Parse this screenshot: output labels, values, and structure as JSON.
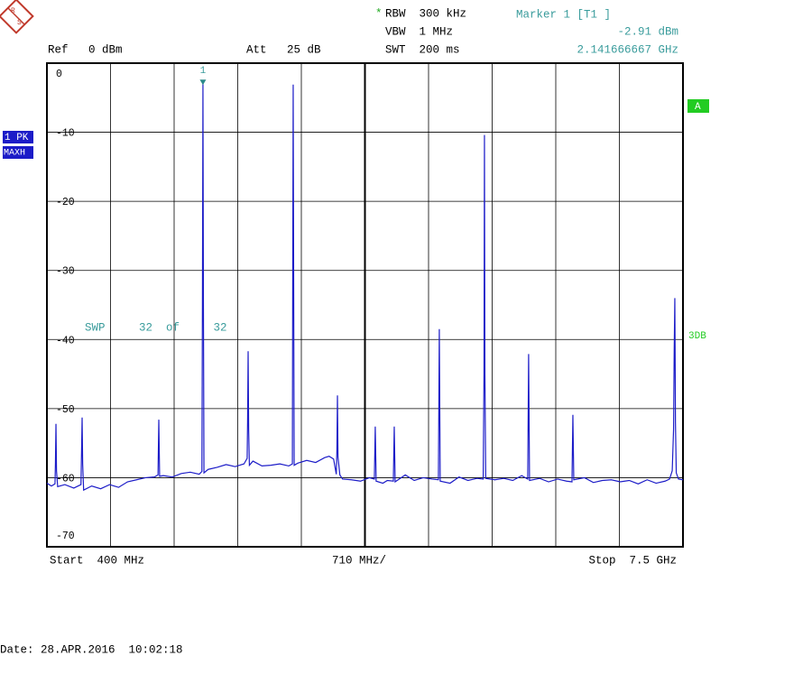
{
  "chart_data": {
    "type": "line",
    "logo": [
      "R",
      "S"
    ],
    "annotations": {
      "rbw_flag": "*",
      "rbw": "RBW  300 kHz",
      "vbw": "VBW  1 MHz",
      "swt": "SWT  200 ms",
      "ref": "Ref   0 dBm",
      "att": "Att   25 dB",
      "trace_mode": "1 PK",
      "trace_detector": "MAXH",
      "screen": "A",
      "limit": "3DB",
      "sweep": "SWP     32  of     32",
      "start": "Start  400 MHz",
      "span_div": "710 MHz/",
      "stop": "Stop  7.5 GHz",
      "date": "Date: 28.APR.2016  10:02:18"
    },
    "marker": {
      "name": "Marker 1 [T1 ]",
      "label": "1",
      "x": 2141.666667,
      "y": -2.91,
      "x_label": "2.141666667 GHz",
      "y_label": "-2.91 dBm"
    },
    "xlim": [
      400,
      7500
    ],
    "ylim": [
      -70,
      0
    ],
    "yticks": [
      0,
      -10,
      -20,
      -30,
      -40,
      -50,
      -60,
      -70
    ],
    "grid": true,
    "series": [
      {
        "name": "1 PK MAXH",
        "color": "#1c1cc8",
        "x": [
          400,
          450,
          490,
          495,
          501,
          507,
          520,
          600,
          700,
          780,
          787,
          793,
          799,
          810,
          900,
          1000,
          1100,
          1200,
          1300,
          1400,
          1500,
          1600,
          1640,
          1649,
          1658,
          1700,
          1800,
          1900,
          2000,
          2100,
          2130,
          2136,
          2141.666667,
          2147,
          2153,
          2200,
          2300,
          2400,
          2500,
          2600,
          2635,
          2640,
          2646,
          2652,
          2660,
          2700,
          2800,
          2900,
          3000,
          3100,
          3140,
          3144,
          3149,
          3154,
          3160,
          3200,
          3300,
          3400,
          3500,
          3550,
          3600,
          3630,
          3637,
          3643,
          3649,
          3670,
          3700,
          3800,
          3900,
          4000,
          4055,
          4065,
          4075,
          4150,
          4200,
          4267,
          4277,
          4287,
          4400,
          4500,
          4600,
          4700,
          4770,
          4780,
          4790,
          4900,
          5000,
          5100,
          5200,
          5270,
          5279,
          5284,
          5289,
          5298,
          5400,
          5500,
          5600,
          5700,
          5767,
          5777,
          5787,
          5900,
          6000,
          6100,
          6200,
          6261,
          6271,
          6281,
          6400,
          6500,
          6600,
          6700,
          6800,
          6900,
          7000,
          7100,
          7200,
          7300,
          7350,
          7380,
          7395,
          7402,
          7409,
          7416,
          7425,
          7450,
          7500
        ],
        "values": [
          -60.8,
          -61.2,
          -60.9,
          -58,
          -52.2,
          -59,
          -61.3,
          -61,
          -61.5,
          -61,
          -56,
          -51.3,
          -58,
          -61.8,
          -61.2,
          -61.6,
          -61,
          -61.4,
          -60.6,
          -60.3,
          -60,
          -59.9,
          -59.6,
          -51.6,
          -59.8,
          -59.7,
          -59.9,
          -59.4,
          -59.2,
          -59.5,
          -59.1,
          -35,
          -2.91,
          -35,
          -59.3,
          -58.8,
          -58.5,
          -58.1,
          -58.4,
          -58,
          -57.2,
          -52,
          -41.7,
          -53,
          -58.2,
          -57.6,
          -58.3,
          -58.2,
          -58,
          -58.3,
          -58,
          -30,
          -3.1,
          -30,
          -58.2,
          -57.9,
          -57.5,
          -57.8,
          -57.1,
          -56.9,
          -57.3,
          -59.5,
          -56,
          -48.1,
          -57,
          -59.6,
          -60.2,
          -60.3,
          -60.5,
          -60,
          -60.2,
          -52.6,
          -60.5,
          -60.8,
          -60.4,
          -60.5,
          -52.6,
          -60.6,
          -59.6,
          -60.4,
          -60,
          -60.2,
          -60.3,
          -38.5,
          -60.5,
          -60.8,
          -59.9,
          -60.4,
          -60.1,
          -60.2,
          -45,
          -10.4,
          -45,
          -60.1,
          -60.3,
          -60.1,
          -60.4,
          -59.7,
          -60.2,
          -42.1,
          -60.4,
          -60.1,
          -60.6,
          -60.2,
          -60.5,
          -60.6,
          -50.9,
          -60.3,
          -60,
          -60.7,
          -60.4,
          -60.3,
          -60.6,
          -60.4,
          -60.9,
          -60.3,
          -60.8,
          -60.5,
          -60.2,
          -59,
          -53,
          -41.7,
          -34,
          -52,
          -59.3,
          -60.2,
          -60.3
        ]
      }
    ]
  }
}
